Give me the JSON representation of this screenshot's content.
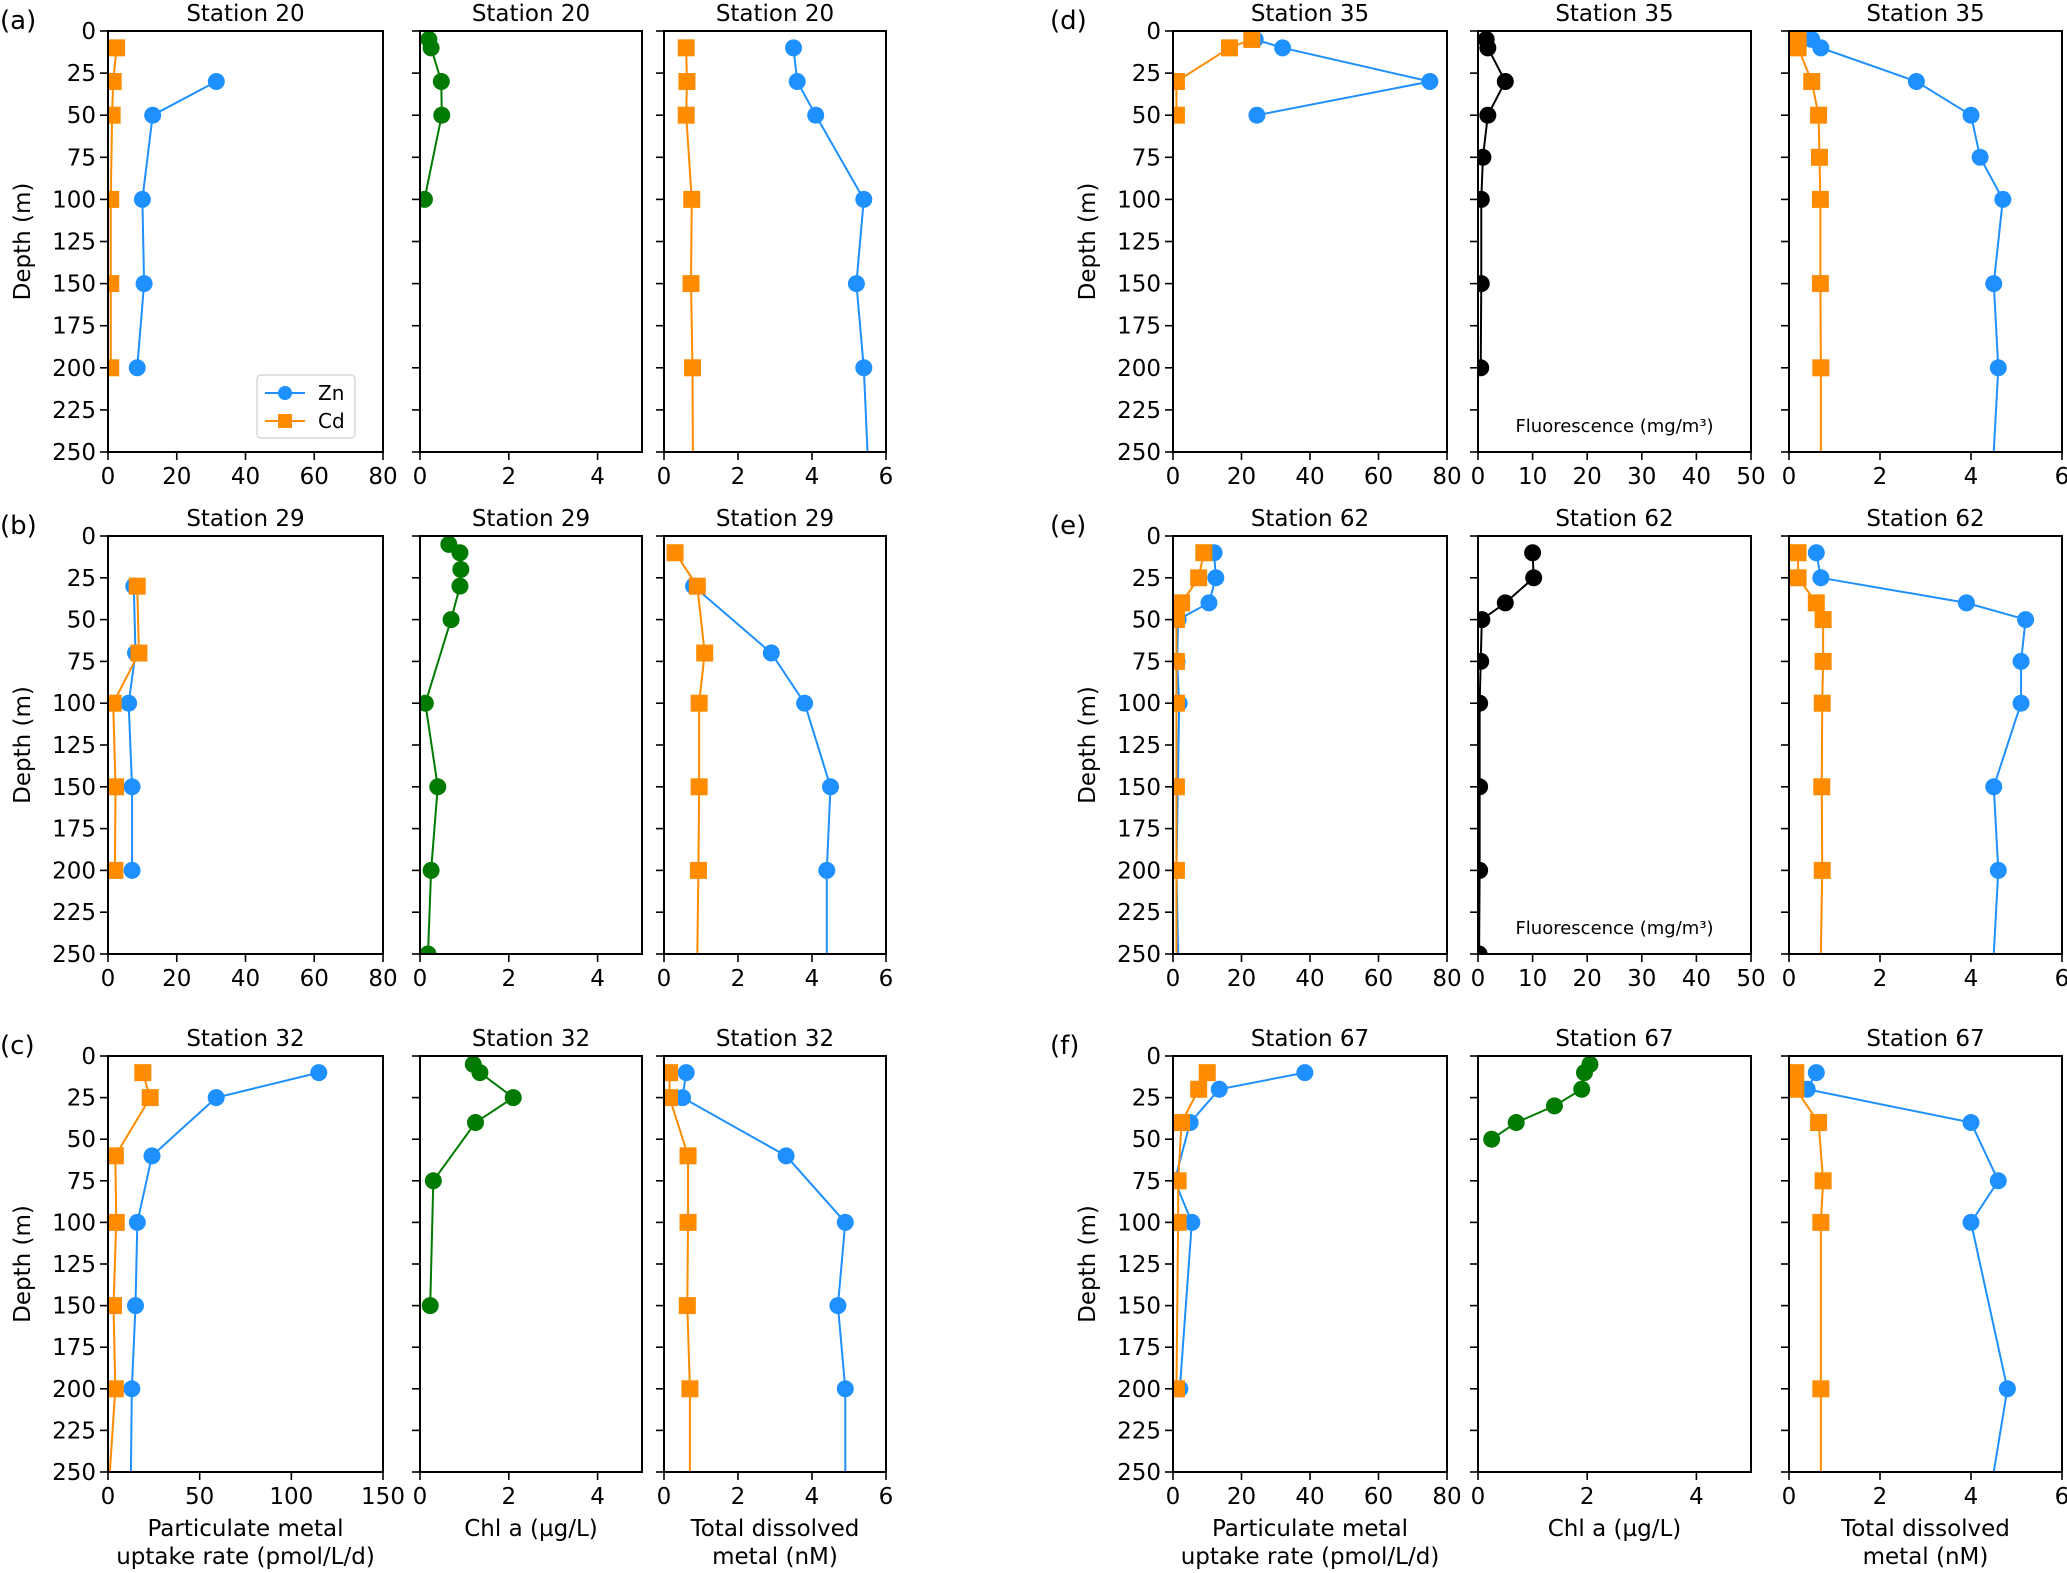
{
  "colors": {
    "Zn": "#1e90ff",
    "Cd": "#ff8c00",
    "chl": "#007a00",
    "fluor": "#000000"
  },
  "chart_data": {
    "type": "line",
    "title": "",
    "ylabel": "Depth (m)",
    "ylim": [
      0,
      250
    ],
    "yticks": [
      0,
      25,
      50,
      75,
      100,
      125,
      150,
      175,
      200,
      225,
      250
    ],
    "y_inverted": true,
    "xlabels": {
      "particulate": [
        "Particulate metal",
        "uptake rate (pmol/L/d)"
      ],
      "chl": [
        "Chl a (µg/L)"
      ],
      "dissolved": [
        "Total dissolved",
        "metal (nM)"
      ]
    },
    "legend": {
      "entries": [
        "Zn",
        "Cd"
      ],
      "placement": "lower-right",
      "panel": "a-particulate"
    },
    "panels": [
      {
        "id": "a",
        "label": "(a)",
        "station": "Station 20",
        "particulate": {
          "xlim": [
            0,
            80
          ],
          "xticks": [
            0,
            20,
            40,
            60,
            80
          ],
          "series": [
            {
              "name": "Zn",
              "depth": [
                30,
                50,
                100,
                150,
                200
              ],
              "values": [
                31.5,
                13,
                10,
                10.5,
                8.5
              ]
            },
            {
              "name": "Cd",
              "depth": [
                10,
                30,
                50,
                100,
                150,
                200
              ],
              "values": [
                2.5,
                1.5,
                1.2,
                0.8,
                0.8,
                0.8
              ]
            }
          ]
        },
        "pigment": {
          "kind": "chl",
          "xlim": [
            0,
            5
          ],
          "xticks": [
            0,
            2,
            4
          ],
          "annotation": "",
          "series": [
            {
              "name": "Chl a",
              "depth": [
                5,
                10,
                30,
                50,
                100
              ],
              "values": [
                0.2,
                0.25,
                0.48,
                0.49,
                0.1
              ]
            }
          ]
        },
        "dissolved": {
          "xlim": [
            0,
            6
          ],
          "xticks": [
            0,
            2,
            4,
            6
          ],
          "extend_to": 250,
          "series": [
            {
              "name": "Zn",
              "depth": [
                10,
                30,
                50,
                100,
                150,
                200,
                250
              ],
              "values": [
                3.5,
                3.6,
                4.1,
                5.4,
                5.2,
                5.4,
                5.5
              ]
            },
            {
              "name": "Cd",
              "depth": [
                10,
                30,
                50,
                100,
                150,
                200,
                250
              ],
              "values": [
                0.6,
                0.62,
                0.6,
                0.75,
                0.73,
                0.77,
                0.78
              ]
            }
          ]
        }
      },
      {
        "id": "b",
        "label": "(b)",
        "station": "Station 29",
        "particulate": {
          "xlim": [
            0,
            80
          ],
          "xticks": [
            0,
            20,
            40,
            60,
            80
          ],
          "series": [
            {
              "name": "Zn",
              "depth": [
                30,
                70,
                100,
                150,
                200
              ],
              "values": [
                7.5,
                8,
                6,
                7,
                7
              ]
            },
            {
              "name": "Cd",
              "depth": [
                30,
                70,
                100,
                150,
                200
              ],
              "values": [
                8.5,
                9,
                1.5,
                2.2,
                2
              ]
            }
          ]
        },
        "pigment": {
          "kind": "chl",
          "xlim": [
            0,
            5
          ],
          "xticks": [
            0,
            2,
            4
          ],
          "annotation": "",
          "series": [
            {
              "name": "Chl a",
              "depth": [
                5,
                10,
                20,
                30,
                50,
                100,
                150,
                200,
                250
              ],
              "values": [
                0.65,
                0.9,
                0.92,
                0.9,
                0.7,
                0.12,
                0.4,
                0.25,
                0.18
              ]
            }
          ]
        },
        "dissolved": {
          "xlim": [
            0,
            6
          ],
          "xticks": [
            0,
            2,
            4,
            6
          ],
          "series": [
            {
              "name": "Zn",
              "depth": [
                30,
                70,
                100,
                150,
                200,
                250
              ],
              "values": [
                0.8,
                2.9,
                3.8,
                4.5,
                4.4,
                4.4
              ]
            },
            {
              "name": "Cd",
              "depth": [
                10,
                30,
                70,
                100,
                150,
                200,
                250
              ],
              "values": [
                0.3,
                0.9,
                1.1,
                0.95,
                0.95,
                0.93,
                0.9
              ]
            }
          ]
        }
      },
      {
        "id": "c",
        "label": "(c)",
        "station": "Station 32",
        "particulate": {
          "xlim": [
            0,
            150
          ],
          "xticks": [
            0,
            50,
            100,
            150
          ],
          "series": [
            {
              "name": "Zn",
              "depth": [
                10,
                25,
                60,
                100,
                150,
                200,
                250
              ],
              "values": [
                115,
                59,
                24,
                16,
                15,
                13,
                12.5
              ]
            },
            {
              "name": "Cd",
              "depth": [
                10,
                25,
                60,
                100,
                150,
                200,
                250
              ],
              "values": [
                19,
                23,
                4,
                4.5,
                3,
                4,
                1
              ]
            }
          ]
        },
        "pigment": {
          "kind": "chl",
          "xlim": [
            0,
            5
          ],
          "xticks": [
            0,
            2,
            4
          ],
          "annotation": "",
          "series": [
            {
              "name": "Chl a",
              "depth": [
                5,
                10,
                25,
                40,
                75,
                150
              ],
              "values": [
                1.2,
                1.35,
                2.1,
                1.25,
                0.3,
                0.23
              ]
            }
          ]
        },
        "dissolved": {
          "xlim": [
            0,
            6
          ],
          "xticks": [
            0,
            2,
            4,
            6
          ],
          "series": [
            {
              "name": "Zn",
              "depth": [
                10,
                25,
                60,
                100,
                150,
                200,
                250
              ],
              "values": [
                0.6,
                0.5,
                3.3,
                4.9,
                4.7,
                4.9,
                4.9
              ]
            },
            {
              "name": "Cd",
              "depth": [
                10,
                25,
                60,
                100,
                150,
                200,
                250
              ],
              "values": [
                0.15,
                0.15,
                0.65,
                0.65,
                0.63,
                0.7,
                0.7
              ]
            }
          ]
        }
      },
      {
        "id": "d",
        "label": "(d)",
        "station": "Station 35",
        "particulate": {
          "xlim": [
            0,
            80
          ],
          "xticks": [
            0,
            20,
            40,
            60,
            80
          ],
          "series": [
            {
              "name": "Zn",
              "depth": [
                5,
                10,
                30,
                50
              ],
              "values": [
                24,
                32,
                75,
                24.5
              ]
            },
            {
              "name": "Cd",
              "depth": [
                5,
                10,
                30,
                50
              ],
              "values": [
                23,
                16.5,
                1,
                1
              ]
            }
          ]
        },
        "pigment": {
          "kind": "fluor",
          "xlim": [
            0,
            50
          ],
          "xticks": [
            0,
            10,
            20,
            30,
            40,
            50
          ],
          "annotation": "Fluorescence (mg/m³)",
          "series": [
            {
              "name": "Fluorescence",
              "depth": [
                5,
                10,
                30,
                50,
                75,
                100,
                150,
                200
              ],
              "values": [
                1.5,
                1.8,
                5,
                1.8,
                0.9,
                0.6,
                0.6,
                0.5
              ]
            }
          ]
        },
        "dissolved": {
          "xlim": [
            0,
            6
          ],
          "xticks": [
            0,
            2,
            4,
            6
          ],
          "series": [
            {
              "name": "Zn",
              "depth": [
                5,
                10,
                30,
                50,
                75,
                100,
                150,
                200,
                250
              ],
              "values": [
                0.5,
                0.7,
                2.8,
                4.0,
                4.2,
                4.7,
                4.5,
                4.6,
                4.5
              ]
            },
            {
              "name": "Cd",
              "depth": [
                5,
                10,
                30,
                50,
                75,
                100,
                150,
                200,
                250
              ],
              "values": [
                0.2,
                0.2,
                0.5,
                0.65,
                0.67,
                0.69,
                0.69,
                0.7,
                0.7
              ]
            }
          ]
        }
      },
      {
        "id": "e",
        "label": "(e)",
        "station": "Station 62",
        "particulate": {
          "xlim": [
            0,
            80
          ],
          "xticks": [
            0,
            20,
            40,
            60,
            80
          ],
          "series": [
            {
              "name": "Zn",
              "depth": [
                10,
                25,
                40,
                50,
                75,
                100,
                200,
                250
              ],
              "values": [
                12,
                12.5,
                10.5,
                1.5,
                1.2,
                1.8,
                1,
                1.5
              ]
            },
            {
              "name": "Cd",
              "depth": [
                10,
                25,
                40,
                50,
                75,
                100,
                150,
                200,
                250
              ],
              "values": [
                9,
                7.5,
                2.5,
                1,
                1,
                1,
                1,
                1,
                1
              ]
            }
          ]
        },
        "pigment": {
          "kind": "fluor",
          "xlim": [
            0,
            50
          ],
          "xticks": [
            0,
            10,
            20,
            30,
            40,
            50
          ],
          "annotation": "Fluorescence (mg/m³)",
          "series": [
            {
              "name": "Fluorescence",
              "depth": [
                10,
                25,
                40,
                50,
                75,
                100,
                150,
                200,
                250
              ],
              "values": [
                10,
                10.2,
                5,
                0.7,
                0.5,
                0.3,
                0.3,
                0.3,
                0.2
              ]
            }
          ]
        },
        "dissolved": {
          "xlim": [
            0,
            6
          ],
          "xticks": [
            0,
            2,
            4,
            6
          ],
          "series": [
            {
              "name": "Zn",
              "depth": [
                10,
                25,
                40,
                50,
                75,
                100,
                150,
                200,
                250
              ],
              "values": [
                0.6,
                0.7,
                3.9,
                5.2,
                5.1,
                5.1,
                4.5,
                4.6,
                4.5
              ]
            },
            {
              "name": "Cd",
              "depth": [
                10,
                25,
                40,
                50,
                75,
                100,
                150,
                200,
                250
              ],
              "values": [
                0.2,
                0.2,
                0.6,
                0.75,
                0.75,
                0.73,
                0.72,
                0.73,
                0.7
              ]
            }
          ]
        }
      },
      {
        "id": "f",
        "label": "(f)",
        "station": "Station 67",
        "particulate": {
          "xlim": [
            0,
            80
          ],
          "xticks": [
            0,
            20,
            40,
            60,
            80
          ],
          "series": [
            {
              "name": "Zn",
              "depth": [
                10,
                20,
                40,
                75,
                100,
                200
              ],
              "values": [
                38.5,
                13.5,
                5,
                0.5,
                5.5,
                2
              ]
            },
            {
              "name": "Cd",
              "depth": [
                10,
                20,
                40,
                75,
                100,
                200
              ],
              "values": [
                10,
                7.5,
                2.5,
                1.5,
                1.5,
                1
              ]
            }
          ]
        },
        "pigment": {
          "kind": "chl",
          "xlim": [
            0,
            5
          ],
          "xticks": [
            0,
            2,
            4
          ],
          "annotation": "",
          "series": [
            {
              "name": "Chl a",
              "depth": [
                5,
                10,
                20,
                30,
                40,
                50
              ],
              "values": [
                2.05,
                1.95,
                1.9,
                1.4,
                0.7,
                0.25
              ]
            }
          ]
        },
        "dissolved": {
          "xlim": [
            0,
            6
          ],
          "xticks": [
            0,
            2,
            4,
            6
          ],
          "series": [
            {
              "name": "Zn",
              "depth": [
                10,
                20,
                40,
                75,
                100,
                200,
                250
              ],
              "values": [
                0.6,
                0.4,
                4.0,
                4.6,
                4.0,
                4.8,
                4.5
              ]
            },
            {
              "name": "Cd",
              "depth": [
                10,
                20,
                40,
                75,
                100,
                200,
                250
              ],
              "values": [
                0.15,
                0.15,
                0.65,
                0.75,
                0.7,
                0.7,
                0.7
              ]
            }
          ]
        }
      }
    ]
  }
}
